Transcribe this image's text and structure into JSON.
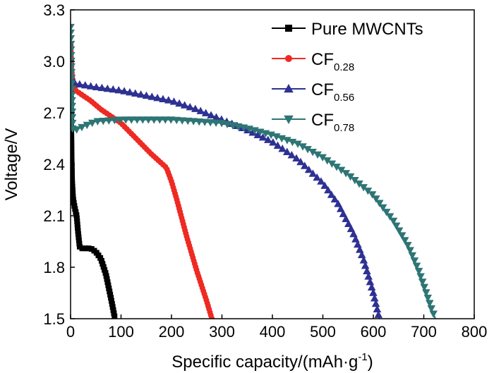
{
  "chart_data": {
    "type": "scatter",
    "title": "",
    "xlabel_main": "Specific capacity/(mAh·g",
    "xlabel_sup": "-1",
    "xlabel_close": ")",
    "ylabel": "Voltage/V",
    "xlim": [
      0,
      800
    ],
    "ylim": [
      1.5,
      3.3
    ],
    "xticks": [
      0,
      100,
      200,
      300,
      400,
      500,
      600,
      700,
      800
    ],
    "yticks": [
      1.5,
      1.8,
      2.1,
      2.4,
      2.7,
      3.0,
      3.3
    ],
    "xtick_labels": [
      "0",
      "100",
      "200",
      "300",
      "400",
      "500",
      "600",
      "700",
      "800"
    ],
    "ytick_labels": [
      "1.5",
      "1.8",
      "2.1",
      "2.4",
      "2.7",
      "3.0",
      "3.3"
    ],
    "legend_position": "top-right",
    "series": [
      {
        "name": "Pure MWCNTs",
        "label_main": "Pure MWCNTs",
        "label_sub": "",
        "color": "#000000",
        "marker": "square",
        "points": [
          [
            0,
            3.1
          ],
          [
            1,
            2.7
          ],
          [
            2,
            2.45
          ],
          [
            3,
            2.3
          ],
          [
            5,
            2.2
          ],
          [
            8,
            2.15
          ],
          [
            12,
            2.1
          ],
          [
            15,
            2.0
          ],
          [
            18,
            1.92
          ],
          [
            22,
            1.91
          ],
          [
            30,
            1.91
          ],
          [
            40,
            1.91
          ],
          [
            50,
            1.89
          ],
          [
            60,
            1.85
          ],
          [
            70,
            1.76
          ],
          [
            80,
            1.62
          ],
          [
            88,
            1.5
          ]
        ]
      },
      {
        "name": "CF0.28",
        "label_main": "CF",
        "label_sub": "0.28",
        "color": "#ee2a23",
        "marker": "circle",
        "points": [
          [
            0,
            3.1
          ],
          [
            2,
            2.95
          ],
          [
            5,
            2.87
          ],
          [
            10,
            2.83
          ],
          [
            20,
            2.81
          ],
          [
            40,
            2.77
          ],
          [
            60,
            2.72
          ],
          [
            80,
            2.68
          ],
          [
            100,
            2.64
          ],
          [
            120,
            2.58
          ],
          [
            140,
            2.52
          ],
          [
            160,
            2.46
          ],
          [
            175,
            2.42
          ],
          [
            190,
            2.38
          ],
          [
            200,
            2.3
          ],
          [
            210,
            2.2
          ],
          [
            220,
            2.09
          ],
          [
            230,
            1.98
          ],
          [
            240,
            1.88
          ],
          [
            250,
            1.78
          ],
          [
            260,
            1.69
          ],
          [
            270,
            1.6
          ],
          [
            280,
            1.5
          ]
        ]
      },
      {
        "name": "CF0.56",
        "label_main": "CF",
        "label_sub": "0.56",
        "color": "#2e3192",
        "marker": "triangle-up",
        "points": [
          [
            0,
            2.9
          ],
          [
            10,
            2.87
          ],
          [
            50,
            2.85
          ],
          [
            100,
            2.83
          ],
          [
            150,
            2.8
          ],
          [
            200,
            2.77
          ],
          [
            250,
            2.72
          ],
          [
            300,
            2.66
          ],
          [
            350,
            2.6
          ],
          [
            400,
            2.53
          ],
          [
            450,
            2.43
          ],
          [
            500,
            2.29
          ],
          [
            530,
            2.17
          ],
          [
            560,
            2.0
          ],
          [
            580,
            1.85
          ],
          [
            600,
            1.65
          ],
          [
            612,
            1.5
          ]
        ]
      },
      {
        "name": "CF0.78",
        "label_main": "CF",
        "label_sub": "0.78",
        "color": "#2e7575",
        "marker": "triangle-down",
        "points": [
          [
            0,
            3.2
          ],
          [
            2,
            2.9
          ],
          [
            4,
            2.6
          ],
          [
            10,
            2.6
          ],
          [
            25,
            2.62
          ],
          [
            50,
            2.65
          ],
          [
            100,
            2.66
          ],
          [
            150,
            2.66
          ],
          [
            200,
            2.66
          ],
          [
            250,
            2.65
          ],
          [
            300,
            2.64
          ],
          [
            350,
            2.61
          ],
          [
            400,
            2.57
          ],
          [
            450,
            2.52
          ],
          [
            500,
            2.44
          ],
          [
            550,
            2.34
          ],
          [
            600,
            2.22
          ],
          [
            640,
            2.07
          ],
          [
            670,
            1.92
          ],
          [
            690,
            1.78
          ],
          [
            705,
            1.65
          ],
          [
            715,
            1.56
          ],
          [
            723,
            1.5
          ]
        ]
      }
    ]
  }
}
